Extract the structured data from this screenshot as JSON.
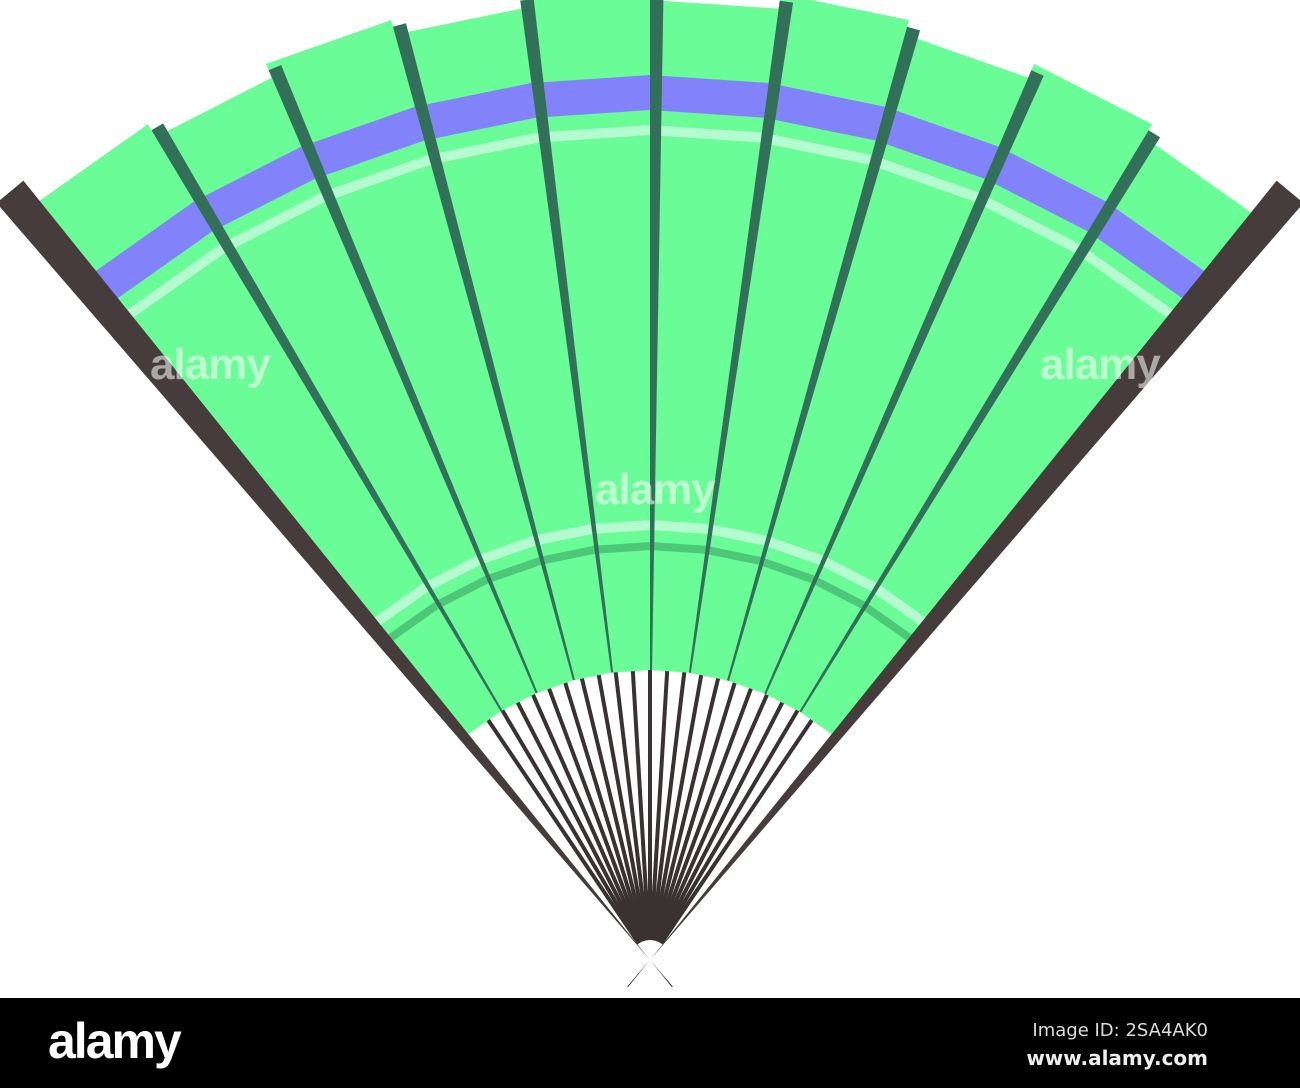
{
  "illustration": {
    "subject": "folding fan",
    "colors": {
      "paper": "#6afc96",
      "rib": "#33705a",
      "guard": "#463c3c",
      "band": "#8282fa",
      "stripe": "#b4fcd0",
      "shadow_stripe": "#4cc878"
    }
  },
  "watermark": {
    "text": "alamy"
  },
  "footer": {
    "logo": "alamy",
    "image_id": "Image ID: 2SA4AK0",
    "url": "www.alamy.com"
  }
}
